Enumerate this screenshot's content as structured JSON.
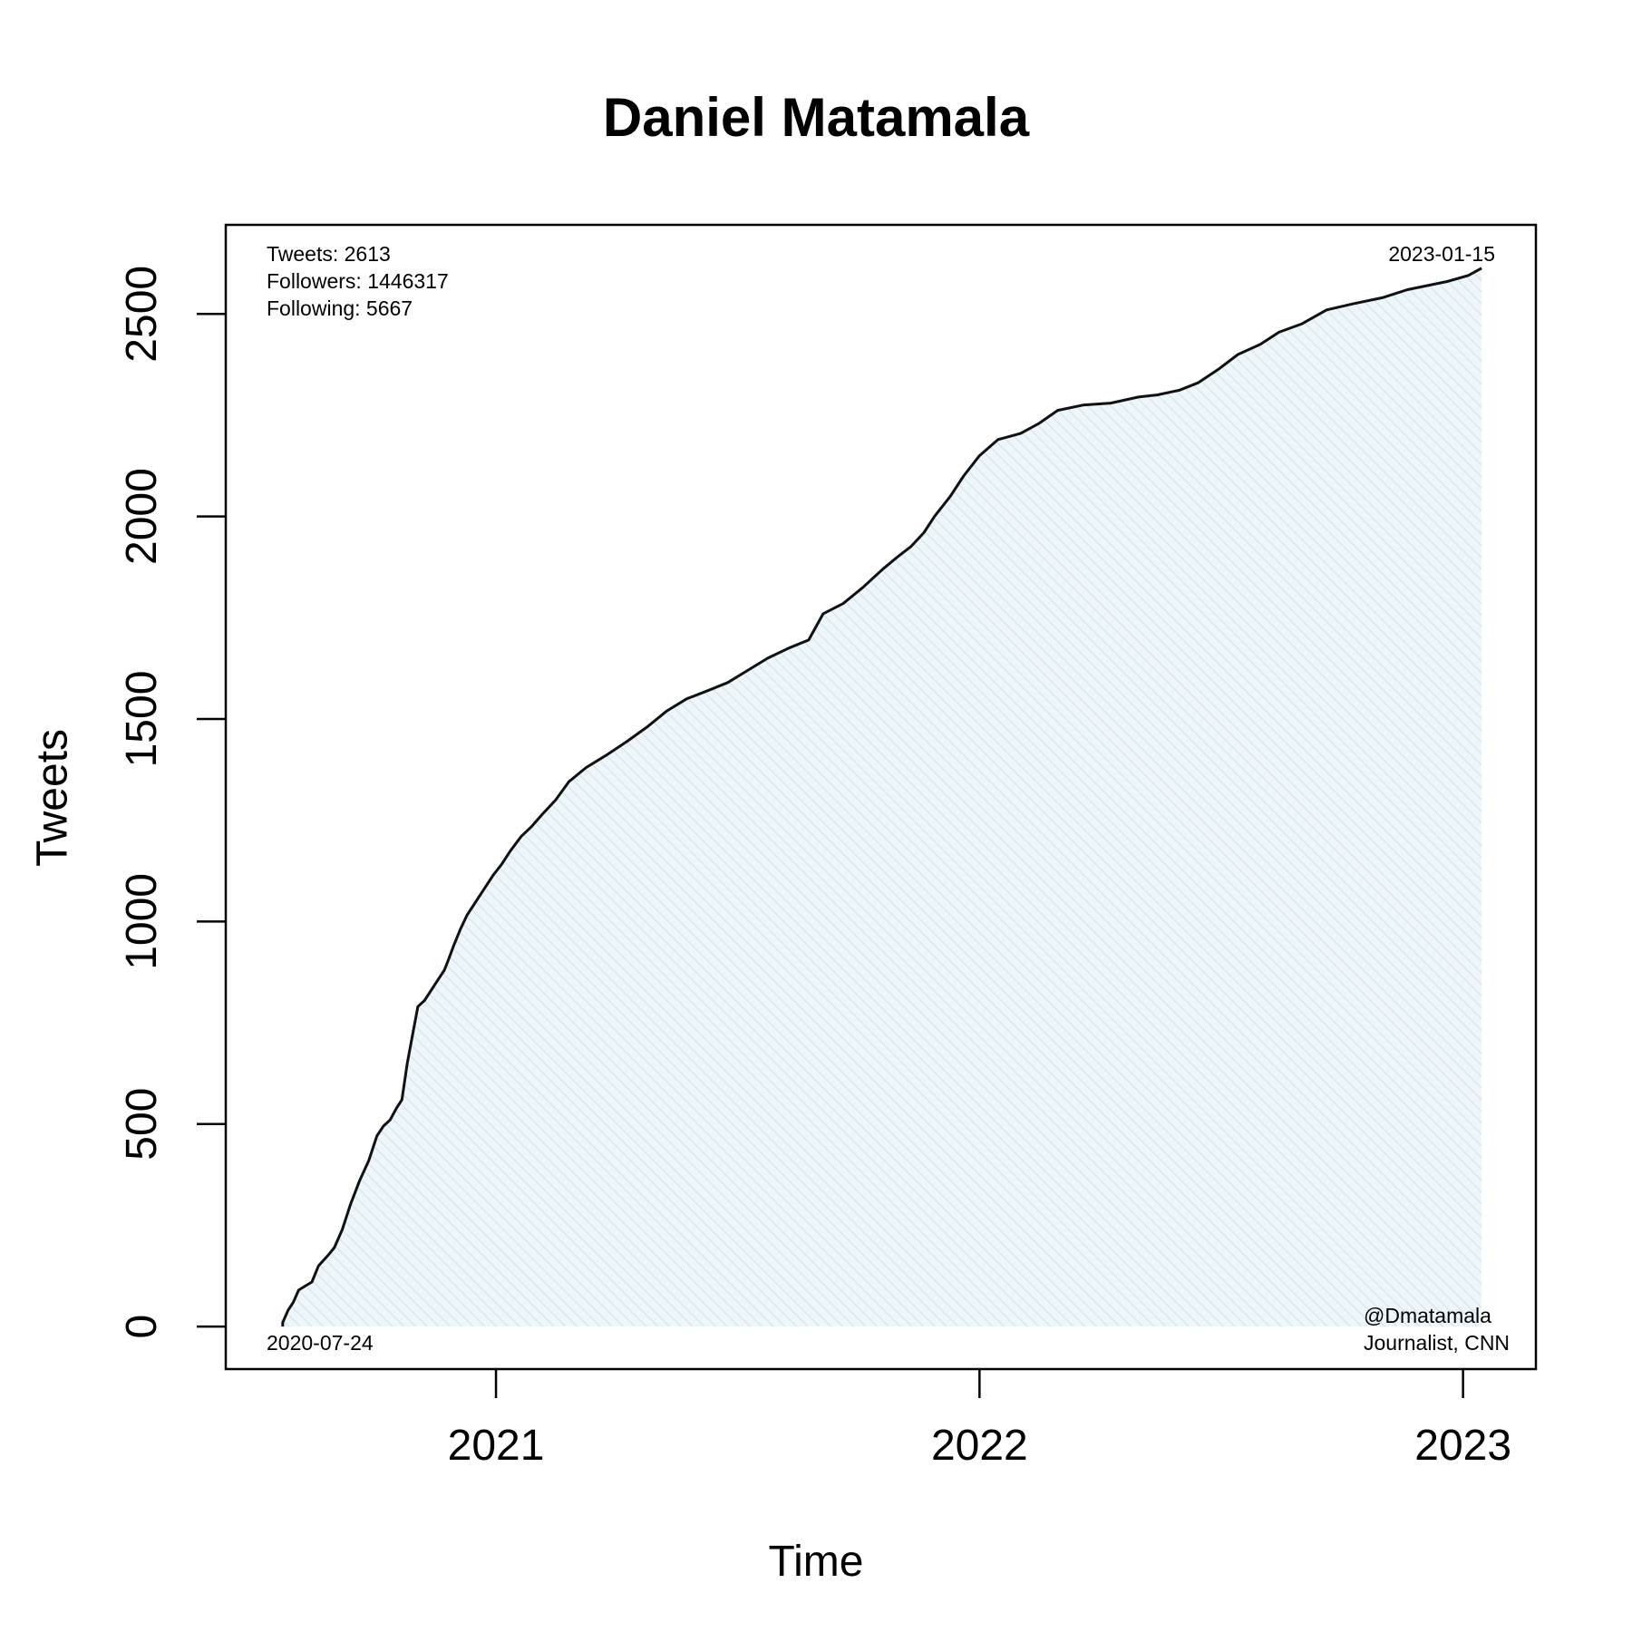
{
  "chart_data": {
    "type": "area",
    "title": "Daniel Matamala",
    "xlabel": "Time",
    "ylabel": "Tweets",
    "x_tick_labels": [
      "2021",
      "2022",
      "2023"
    ],
    "x_ticks": [
      "2021-01-01",
      "2022-01-01",
      "2023-01-01"
    ],
    "y_ticks": [
      0,
      500,
      1000,
      1500,
      2000,
      2500
    ],
    "xlim": [
      "2020-06-11",
      "2023-02-25"
    ],
    "ylim": [
      -105,
      2720
    ],
    "grid": false,
    "legend": "none",
    "colors": {
      "line": "#111111",
      "fill": "#e6f1f5",
      "hatch": "#d2e6ee"
    },
    "start_label": "2020-07-24",
    "end_label": "2023-01-15",
    "stats": [
      "Tweets: 2613",
      "Followers: 1446317",
      "Following: 5667"
    ],
    "credit": [
      "@Dmatamala",
      "Journalist, CNN"
    ],
    "series": [
      {
        "x": [
          "2020-07-24",
          "2020-07-28",
          "2020-08-01",
          "2020-08-05",
          "2020-08-10",
          "2020-08-15",
          "2020-08-20",
          "2020-08-27",
          "2020-09-01",
          "2020-09-07",
          "2020-09-13",
          "2020-09-20",
          "2020-09-27",
          "2020-10-03",
          "2020-10-08",
          "2020-10-13",
          "2020-10-18",
          "2020-10-22",
          "2020-10-26",
          "2020-10-30",
          "2020-11-03",
          "2020-11-08",
          "2020-11-13",
          "2020-11-18",
          "2020-11-23",
          "2020-11-26",
          "2020-11-30",
          "2020-12-05",
          "2020-12-10",
          "2020-12-15",
          "2020-12-20",
          "2020-12-25",
          "2020-12-30",
          "2021-01-05",
          "2021-01-12",
          "2021-01-20",
          "2021-01-28",
          "2021-02-05",
          "2021-02-15",
          "2021-02-25",
          "2021-03-10",
          "2021-03-25",
          "2021-04-10",
          "2021-04-25",
          "2021-05-10",
          "2021-05-25",
          "2021-06-10",
          "2021-06-25",
          "2021-07-10",
          "2021-07-25",
          "2021-08-10",
          "2021-08-25",
          "2021-09-05",
          "2021-09-20",
          "2021-10-05",
          "2021-10-20",
          "2021-10-31",
          "2021-11-10",
          "2021-11-20",
          "2021-11-28",
          "2021-12-10",
          "2021-12-20",
          "2022-01-01",
          "2022-01-15",
          "2022-02-01",
          "2022-02-15",
          "2022-03-01",
          "2022-03-20",
          "2022-04-10",
          "2022-05-01",
          "2022-05-15",
          "2022-06-01",
          "2022-06-15",
          "2022-07-01",
          "2022-07-15",
          "2022-08-01",
          "2022-08-15",
          "2022-09-01",
          "2022-09-20",
          "2022-10-10",
          "2022-11-01",
          "2022-11-20",
          "2022-12-05",
          "2022-12-20",
          "2023-01-05",
          "2023-01-15"
        ],
        "values": [
          10,
          40,
          60,
          90,
          100,
          110,
          150,
          175,
          195,
          240,
          300,
          360,
          410,
          470,
          495,
          510,
          540,
          560,
          650,
          720,
          790,
          805,
          830,
          855,
          880,
          905,
          940,
          980,
          1015,
          1040,
          1065,
          1090,
          1115,
          1140,
          1175,
          1210,
          1235,
          1265,
          1300,
          1345,
          1380,
          1410,
          1445,
          1480,
          1520,
          1550,
          1570,
          1590,
          1620,
          1650,
          1675,
          1695,
          1760,
          1785,
          1825,
          1870,
          1900,
          1925,
          1960,
          2000,
          2050,
          2100,
          2150,
          2190,
          2205,
          2230,
          2262,
          2275,
          2280,
          2295,
          2300,
          2312,
          2330,
          2365,
          2400,
          2425,
          2455,
          2475,
          2510,
          2525,
          2540,
          2560,
          2570,
          2580,
          2595,
          2613
        ]
      }
    ]
  }
}
